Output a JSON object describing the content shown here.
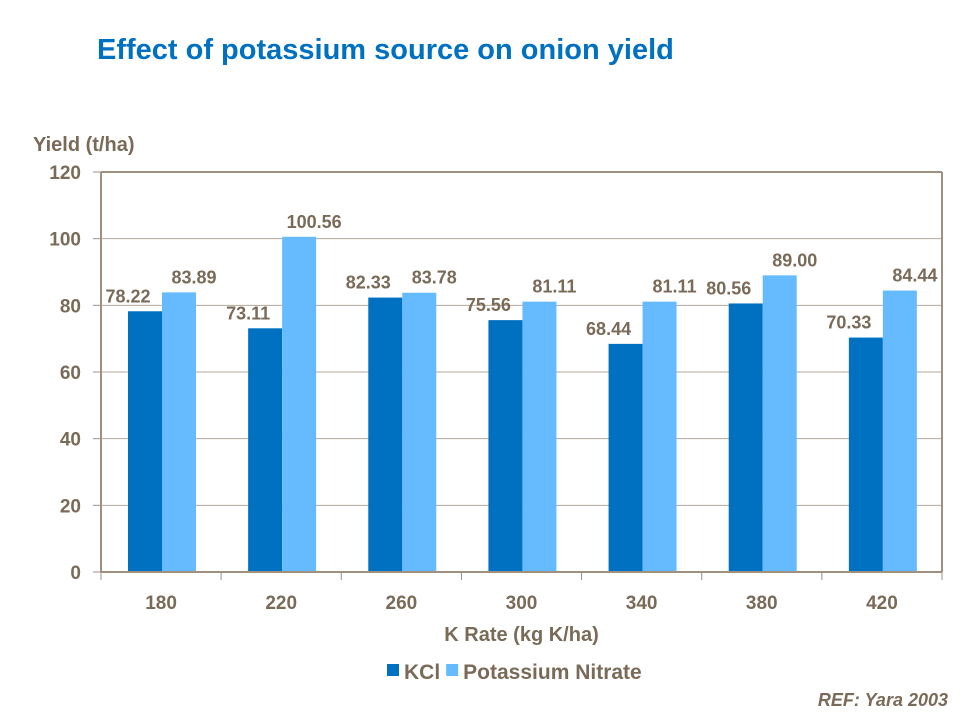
{
  "chart_data": {
    "type": "bar",
    "title": "Effect of potassium source on onion yield",
    "xlabel": "K Rate (kg K/ha)",
    "ylabel": "Yield (t/ha)",
    "categories": [
      "180",
      "220",
      "260",
      "300",
      "340",
      "380",
      "420"
    ],
    "series": [
      {
        "name": "KCl",
        "color": "#0070C0",
        "values": [
          78.22,
          73.11,
          82.33,
          75.56,
          68.44,
          80.56,
          70.33
        ],
        "labels": [
          "78.22",
          "73.11",
          "82.33",
          "75.56",
          "68.44",
          "80.56",
          "70.33"
        ]
      },
      {
        "name": "Potassium Nitrate",
        "color": "#66BBFF",
        "values": [
          83.89,
          100.56,
          83.78,
          81.11,
          81.11,
          89.0,
          84.44
        ],
        "labels": [
          "83.89",
          "100.56",
          "83.78",
          "81.11",
          "81.11",
          "89.00",
          "84.44"
        ]
      }
    ],
    "ylim": [
      0,
      120
    ],
    "yticks": [
      "0",
      "20",
      "40",
      "60",
      "80",
      "100",
      "120"
    ],
    "grid": true,
    "legend_position": "bottom"
  },
  "reference": "REF: Yara 2003"
}
